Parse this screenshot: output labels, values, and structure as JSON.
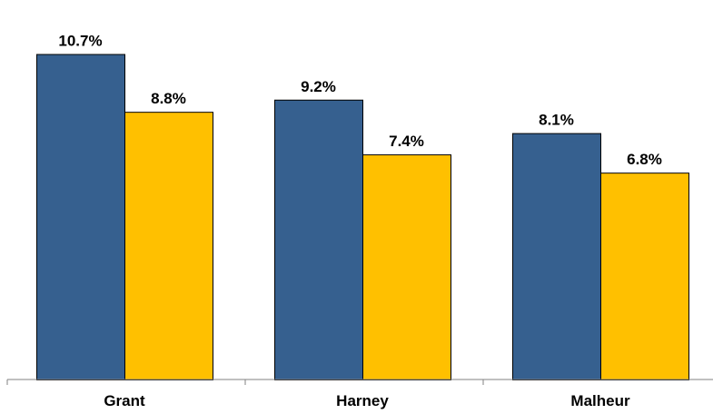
{
  "chart_data": {
    "type": "bar",
    "categories": [
      "Grant",
      "Harney",
      "Malheur"
    ],
    "series": [
      {
        "values": [
          10.7,
          9.2,
          8.1
        ],
        "labels": [
          "10.7%",
          "9.2%",
          "8.1%"
        ],
        "color": "#36608F"
      },
      {
        "values": [
          8.8,
          7.4,
          6.8
        ],
        "labels": [
          "8.8%",
          "7.4%",
          "6.8%"
        ],
        "color": "#FFC000"
      }
    ],
    "ylim": [
      0,
      11.7
    ],
    "grid": false,
    "legend": "none"
  }
}
